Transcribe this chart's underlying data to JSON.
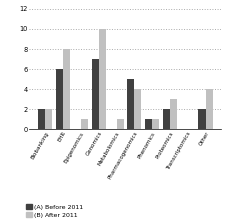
{
  "categories": [
    "Biobanking",
    "EHR",
    "Epigenomics",
    "Genomics",
    "Metabolomics",
    "Pharmacogenomics",
    "Phenomics",
    "Proteomics",
    "Transcriptomics",
    "Other"
  ],
  "before_2011": [
    2,
    6,
    0,
    7,
    0,
    5,
    1,
    2,
    0,
    2
  ],
  "after_2011": [
    2,
    8,
    1,
    10,
    1,
    4,
    1,
    3,
    0,
    4
  ],
  "color_before": "#404040",
  "color_after": "#c0c0c0",
  "ylim": [
    0,
    12
  ],
  "yticks": [
    0,
    2,
    4,
    6,
    8,
    10,
    12
  ],
  "legend_before": "(A) Before 2011",
  "legend_after": "(B) After 2011",
  "bar_width": 0.4,
  "figsize": [
    2.26,
    2.23
  ],
  "dpi": 100
}
